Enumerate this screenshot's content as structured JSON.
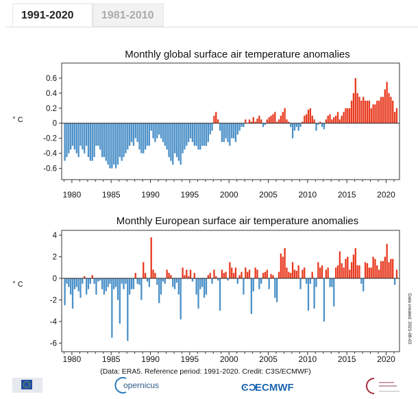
{
  "tabs": [
    {
      "label": "1991-2020",
      "active": true
    },
    {
      "label": "1981-2010",
      "active": false
    }
  ],
  "colors": {
    "positive": "#e8391e",
    "negative": "#4a90c8",
    "axis": "#333"
  },
  "chart_data": [
    {
      "type": "bar",
      "title": "Monthly global surface air temperature anomalies",
      "ylabel": "° C",
      "xlabel": "",
      "resolution": "quarterly approximation of monthly values",
      "x_start": 1979.0,
      "x_step": 0.25,
      "xlim": [
        1978.7,
        2021.7
      ],
      "ylim": [
        -0.75,
        0.8
      ],
      "xticks": [
        1980,
        1985,
        1990,
        1995,
        2000,
        2005,
        2010,
        2015,
        2020
      ],
      "yticks": [
        -0.6,
        -0.4,
        -0.2,
        0,
        0.2,
        0.4,
        0.6
      ],
      "ytick_labels": [
        "-0.6",
        "-0.4",
        "-0.2",
        "0",
        "0.2",
        "0.4",
        "0.6"
      ],
      "values": [
        -0.5,
        -0.45,
        -0.4,
        -0.35,
        -0.3,
        -0.35,
        -0.4,
        -0.45,
        -0.3,
        -0.35,
        -0.4,
        -0.3,
        -0.45,
        -0.5,
        -0.5,
        -0.45,
        -0.3,
        -0.3,
        -0.35,
        -0.45,
        -0.45,
        -0.5,
        -0.55,
        -0.6,
        -0.6,
        -0.55,
        -0.6,
        -0.55,
        -0.45,
        -0.5,
        -0.45,
        -0.4,
        -0.35,
        -0.3,
        -0.25,
        -0.3,
        -0.2,
        -0.25,
        -0.35,
        -0.4,
        -0.4,
        -0.35,
        -0.3,
        -0.3,
        -0.1,
        -0.2,
        -0.25,
        -0.2,
        -0.15,
        -0.2,
        -0.25,
        -0.3,
        -0.35,
        -0.45,
        -0.5,
        -0.55,
        -0.4,
        -0.45,
        -0.5,
        -0.55,
        -0.4,
        -0.35,
        -0.3,
        -0.25,
        -0.2,
        -0.25,
        -0.3,
        -0.3,
        -0.35,
        -0.35,
        -0.3,
        -0.3,
        -0.3,
        -0.25,
        -0.15,
        -0.1,
        0.1,
        0.15,
        0.05,
        -0.1,
        -0.25,
        -0.25,
        -0.2,
        -0.25,
        -0.3,
        -0.2,
        -0.2,
        -0.25,
        -0.15,
        -0.1,
        -0.05,
        -0.05,
        0.05,
        0.0,
        0.05,
        0.02,
        0.08,
        0.02,
        0.06,
        0.1,
        0.05,
        -0.05,
        -0.02,
        0.05,
        0.08,
        0.1,
        0.12,
        0.15,
        0.02,
        0.05,
        0.1,
        0.15,
        0.2,
        0.05,
        0.02,
        -0.05,
        -0.2,
        -0.1,
        -0.05,
        -0.1,
        -0.05,
        0.02,
        0.1,
        0.12,
        0.18,
        0.2,
        0.1,
        0.05,
        -0.1,
        -0.02,
        0.02,
        -0.05,
        -0.08,
        0.05,
        0.1,
        0.12,
        0.05,
        0.08,
        0.1,
        0.15,
        0.05,
        0.1,
        0.15,
        0.2,
        0.2,
        0.2,
        0.3,
        0.4,
        0.6,
        0.4,
        0.35,
        0.3,
        0.35,
        0.3,
        0.3,
        0.3,
        0.2,
        0.25,
        0.25,
        0.3,
        0.3,
        0.35,
        0.35,
        0.45,
        0.55,
        0.4,
        0.35,
        0.3,
        0.15,
        0.2
      ]
    },
    {
      "type": "bar",
      "title": "Monthly European surface air temperature anomalies",
      "ylabel": "° C",
      "xlabel": "",
      "resolution": "quarterly approximation of monthly values",
      "x_start": 1979.0,
      "x_step": 0.25,
      "xlim": [
        1978.7,
        2021.7
      ],
      "ylim": [
        -6.8,
        4.45
      ],
      "xticks": [
        1980,
        1985,
        1990,
        1995,
        2000,
        2005,
        2010,
        2015,
        2020
      ],
      "yticks": [
        -6,
        -4,
        -2,
        0,
        2,
        4
      ],
      "ytick_labels": [
        "-6",
        "-4",
        "-2",
        "0",
        "2",
        "4"
      ],
      "values": [
        -2.5,
        -0.5,
        -0.8,
        -1.5,
        -2.8,
        -1.0,
        -0.8,
        -1.2,
        -1.8,
        -0.5,
        0.2,
        -1.5,
        -1.0,
        -0.5,
        0.3,
        -0.5,
        -1.5,
        -0.3,
        -0.2,
        -1.0,
        -1.5,
        -1.2,
        -0.8,
        -0.5,
        -5.5,
        -1.0,
        -0.8,
        -2.0,
        -4.2,
        -0.5,
        -1.0,
        -0.5,
        -5.8,
        -1.5,
        -1.0,
        -1.0,
        0.5,
        -0.5,
        -0.6,
        -2.0,
        1.5,
        0.5,
        -0.3,
        -0.8,
        3.8,
        0.8,
        0.5,
        -0.6,
        -2.3,
        -1.5,
        -0.3,
        -0.5,
        0.8,
        0.5,
        0.3,
        -0.8,
        -1.0,
        -0.4,
        -1.5,
        -3.8,
        1.0,
        0.3,
        0.8,
        0.2,
        0.8,
        -0.3,
        0.5,
        -1.5,
        -2.8,
        -1.0,
        -0.8,
        -1.8,
        -1.5,
        0.3,
        0.5,
        -0.5,
        0.8,
        0.2,
        -0.2,
        -3.0,
        0.8,
        0.5,
        0.6,
        -0.2,
        1.5,
        1.0,
        0.5,
        1.0,
        -0.5,
        0.3,
        0.6,
        -1.5,
        1.0,
        0.6,
        0.8,
        -3.3,
        -1.2,
        1.0,
        0.8,
        -1.0,
        -0.5,
        0.5,
        0.6,
        0.8,
        -1.0,
        0.4,
        0.3,
        -1.8,
        -2.2,
        0.6,
        2.3,
        2.0,
        2.8,
        1.0,
        0.6,
        0.5,
        1.5,
        0.8,
        0.7,
        1.2,
        -1.0,
        0.8,
        1.0,
        -0.5,
        -3.0,
        -0.5,
        0.6,
        -2.8,
        -0.8,
        1.5,
        1.0,
        1.2,
        -4.0,
        0.8,
        1.0,
        -0.8,
        -0.8,
        -2.6,
        1.0,
        1.2,
        2.5,
        1.4,
        1.0,
        1.8,
        2.0,
        0.8,
        1.5,
        2.2,
        2.8,
        1.2,
        1.2,
        -0.5,
        -1.2,
        1.5,
        1.4,
        1.0,
        1.0,
        2.0,
        1.8,
        1.2,
        0.8,
        1.6,
        1.6,
        2.0,
        3.2,
        1.5,
        1.8,
        1.8,
        -0.6,
        0.8
      ]
    }
  ],
  "caption": "(Data: ERA5.  Reference period: 1991-2020.  Credit: C3S/ECMWF)",
  "date_created": "Data created: 2021-08-03",
  "logos": [
    "European Commission",
    "Copernicus",
    "ECMWF",
    "Climate Change Service"
  ],
  "logo_text": {
    "copernicus": "opernicus",
    "ecmwf": "ECMWF"
  }
}
